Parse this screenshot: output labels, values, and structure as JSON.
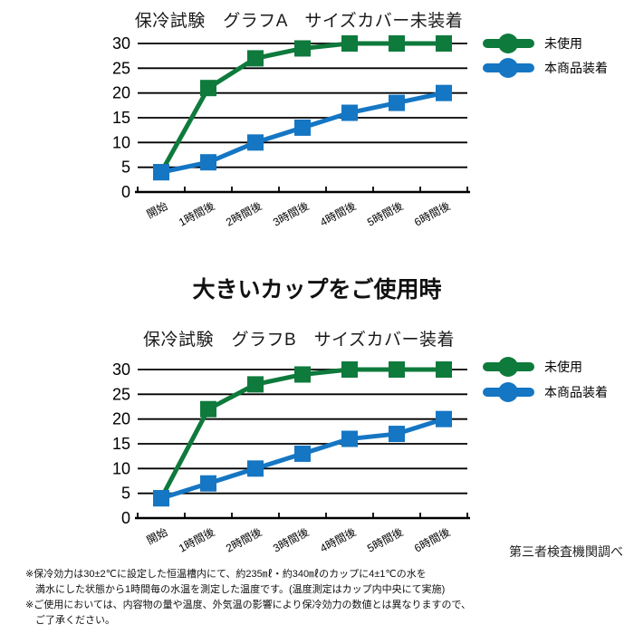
{
  "colors": {
    "green": "#0e7a3c",
    "blue": "#1576c3",
    "grid": "#000000"
  },
  "heading": "大きいカップをご使用時",
  "source_note": "第三者検査機関調べ",
  "chart_data": [
    {
      "type": "line",
      "title": "保冷試験　グラフA　サイズカバー未装着",
      "categories": [
        "開始",
        "1時間後",
        "2時間後",
        "3時間後",
        "4時間後",
        "5時間後",
        "6時間後"
      ],
      "yticks": [
        0,
        5,
        10,
        15,
        20,
        25,
        30
      ],
      "ylim": [
        0,
        30
      ],
      "grid": true,
      "legend_position": "right-top",
      "series": [
        {
          "name": "未使用",
          "color": "#0e7a3c",
          "marker": "square",
          "values": [
            4,
            21,
            27,
            29,
            30,
            30,
            30
          ]
        },
        {
          "name": "本商品装着",
          "color": "#1576c3",
          "marker": "square",
          "values": [
            4,
            6,
            10,
            13,
            16,
            18,
            20
          ]
        }
      ]
    },
    {
      "type": "line",
      "title": "保冷試験　グラフB　サイズカバー装着",
      "categories": [
        "開始",
        "1時間後",
        "2時間後",
        "3時間後",
        "4時間後",
        "5時間後",
        "6時間後"
      ],
      "yticks": [
        0,
        5,
        10,
        15,
        20,
        25,
        30
      ],
      "ylim": [
        0,
        30
      ],
      "grid": true,
      "legend_position": "right-top",
      "series": [
        {
          "name": "未使用",
          "color": "#0e7a3c",
          "marker": "square",
          "values": [
            4,
            22,
            27,
            29,
            30,
            30,
            30
          ]
        },
        {
          "name": "本商品装着",
          "color": "#1576c3",
          "marker": "square",
          "values": [
            4,
            7,
            10,
            13,
            16,
            17,
            20
          ]
        }
      ]
    }
  ],
  "footnotes": [
    "※保冷効力は30±2℃に設定した恒温槽内にて、約235㎖・約340㎖のカップに4±1℃の水を",
    "満水にした状態から1時間毎の水温を測定した温度です。(温度測定はカップ内中央にて実施)",
    "※ご使用においては、内容物の量や温度、外気温の影響により保冷効力の数値とは異なりますので、",
    "ご了承ください。"
  ]
}
